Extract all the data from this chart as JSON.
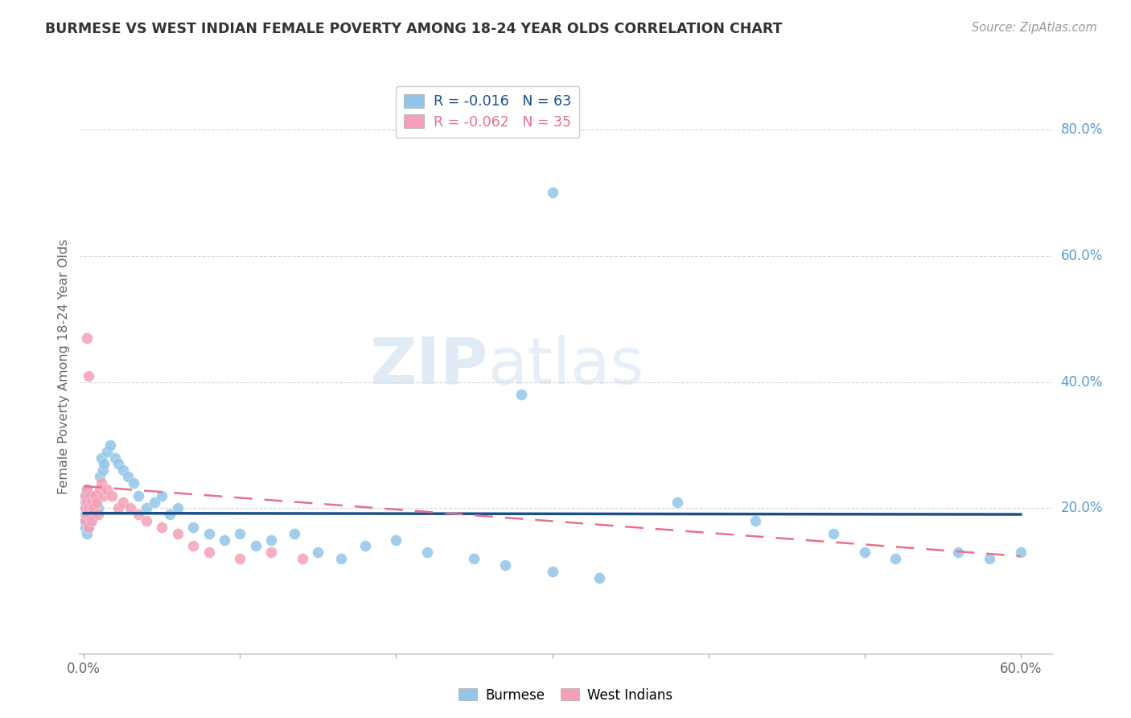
{
  "title": "BURMESE VS WEST INDIAN FEMALE POVERTY AMONG 18-24 YEAR OLDS CORRELATION CHART",
  "source": "Source: ZipAtlas.com",
  "ylabel": "Female Poverty Among 18-24 Year Olds",
  "xlim": [
    -0.003,
    0.62
  ],
  "ylim": [
    -0.03,
    0.88
  ],
  "x_ticks": [
    0.0,
    0.1,
    0.2,
    0.3,
    0.4,
    0.5,
    0.6
  ],
  "x_tick_labels": [
    "0.0%",
    "",
    "",
    "",
    "",
    "",
    "60.0%"
  ],
  "y_ticks_right": [
    0.2,
    0.4,
    0.6,
    0.8
  ],
  "y_tick_labels_right": [
    "20.0%",
    "40.0%",
    "60.0%",
    "80.0%"
  ],
  "burmese_color": "#92C5E8",
  "west_indian_color": "#F4A0B8",
  "burmese_line_color": "#1A4F8A",
  "west_indian_line_color": "#E8708A",
  "watermark_color": "#C8DCF0",
  "background_color": "#ffffff",
  "grid_color": "#cccccc",
  "burmese_x": [
    0.001,
    0.001,
    0.001,
    0.001,
    0.001,
    0.002,
    0.002,
    0.002,
    0.002,
    0.003,
    0.003,
    0.003,
    0.004,
    0.004,
    0.005,
    0.005,
    0.006,
    0.007,
    0.008,
    0.009,
    0.01,
    0.011,
    0.012,
    0.013,
    0.015,
    0.017,
    0.02,
    0.022,
    0.025,
    0.028,
    0.032,
    0.035,
    0.04,
    0.045,
    0.05,
    0.055,
    0.06,
    0.07,
    0.08,
    0.09,
    0.1,
    0.11,
    0.12,
    0.135,
    0.15,
    0.165,
    0.18,
    0.2,
    0.22,
    0.25,
    0.27,
    0.3,
    0.33,
    0.28,
    0.38,
    0.43,
    0.48,
    0.5,
    0.52,
    0.56,
    0.58,
    0.6,
    0.3
  ],
  "burmese_y": [
    0.22,
    0.21,
    0.19,
    0.18,
    0.17,
    0.23,
    0.2,
    0.18,
    0.16,
    0.21,
    0.19,
    0.17,
    0.2,
    0.18,
    0.22,
    0.19,
    0.2,
    0.21,
    0.22,
    0.2,
    0.25,
    0.28,
    0.26,
    0.27,
    0.29,
    0.3,
    0.28,
    0.27,
    0.26,
    0.25,
    0.24,
    0.22,
    0.2,
    0.21,
    0.22,
    0.19,
    0.2,
    0.17,
    0.16,
    0.15,
    0.16,
    0.14,
    0.15,
    0.16,
    0.13,
    0.12,
    0.14,
    0.15,
    0.13,
    0.12,
    0.11,
    0.1,
    0.09,
    0.38,
    0.21,
    0.18,
    0.16,
    0.13,
    0.12,
    0.13,
    0.12,
    0.13,
    0.7
  ],
  "west_indian_x": [
    0.001,
    0.001,
    0.001,
    0.002,
    0.002,
    0.002,
    0.003,
    0.003,
    0.004,
    0.004,
    0.005,
    0.005,
    0.006,
    0.007,
    0.008,
    0.009,
    0.01,
    0.011,
    0.013,
    0.015,
    0.018,
    0.022,
    0.025,
    0.03,
    0.035,
    0.04,
    0.05,
    0.06,
    0.07,
    0.08,
    0.1,
    0.12,
    0.14,
    0.002,
    0.003
  ],
  "west_indian_y": [
    0.22,
    0.2,
    0.18,
    0.23,
    0.21,
    0.19,
    0.2,
    0.17,
    0.22,
    0.19,
    0.21,
    0.18,
    0.2,
    0.22,
    0.21,
    0.19,
    0.23,
    0.24,
    0.22,
    0.23,
    0.22,
    0.2,
    0.21,
    0.2,
    0.19,
    0.18,
    0.17,
    0.16,
    0.14,
    0.13,
    0.12,
    0.13,
    0.12,
    0.47,
    0.41
  ],
  "burmese_line_intercept": 0.192,
  "burmese_line_slope": -0.003,
  "west_indian_line_intercept": 0.235,
  "west_indian_line_slope": -0.185
}
